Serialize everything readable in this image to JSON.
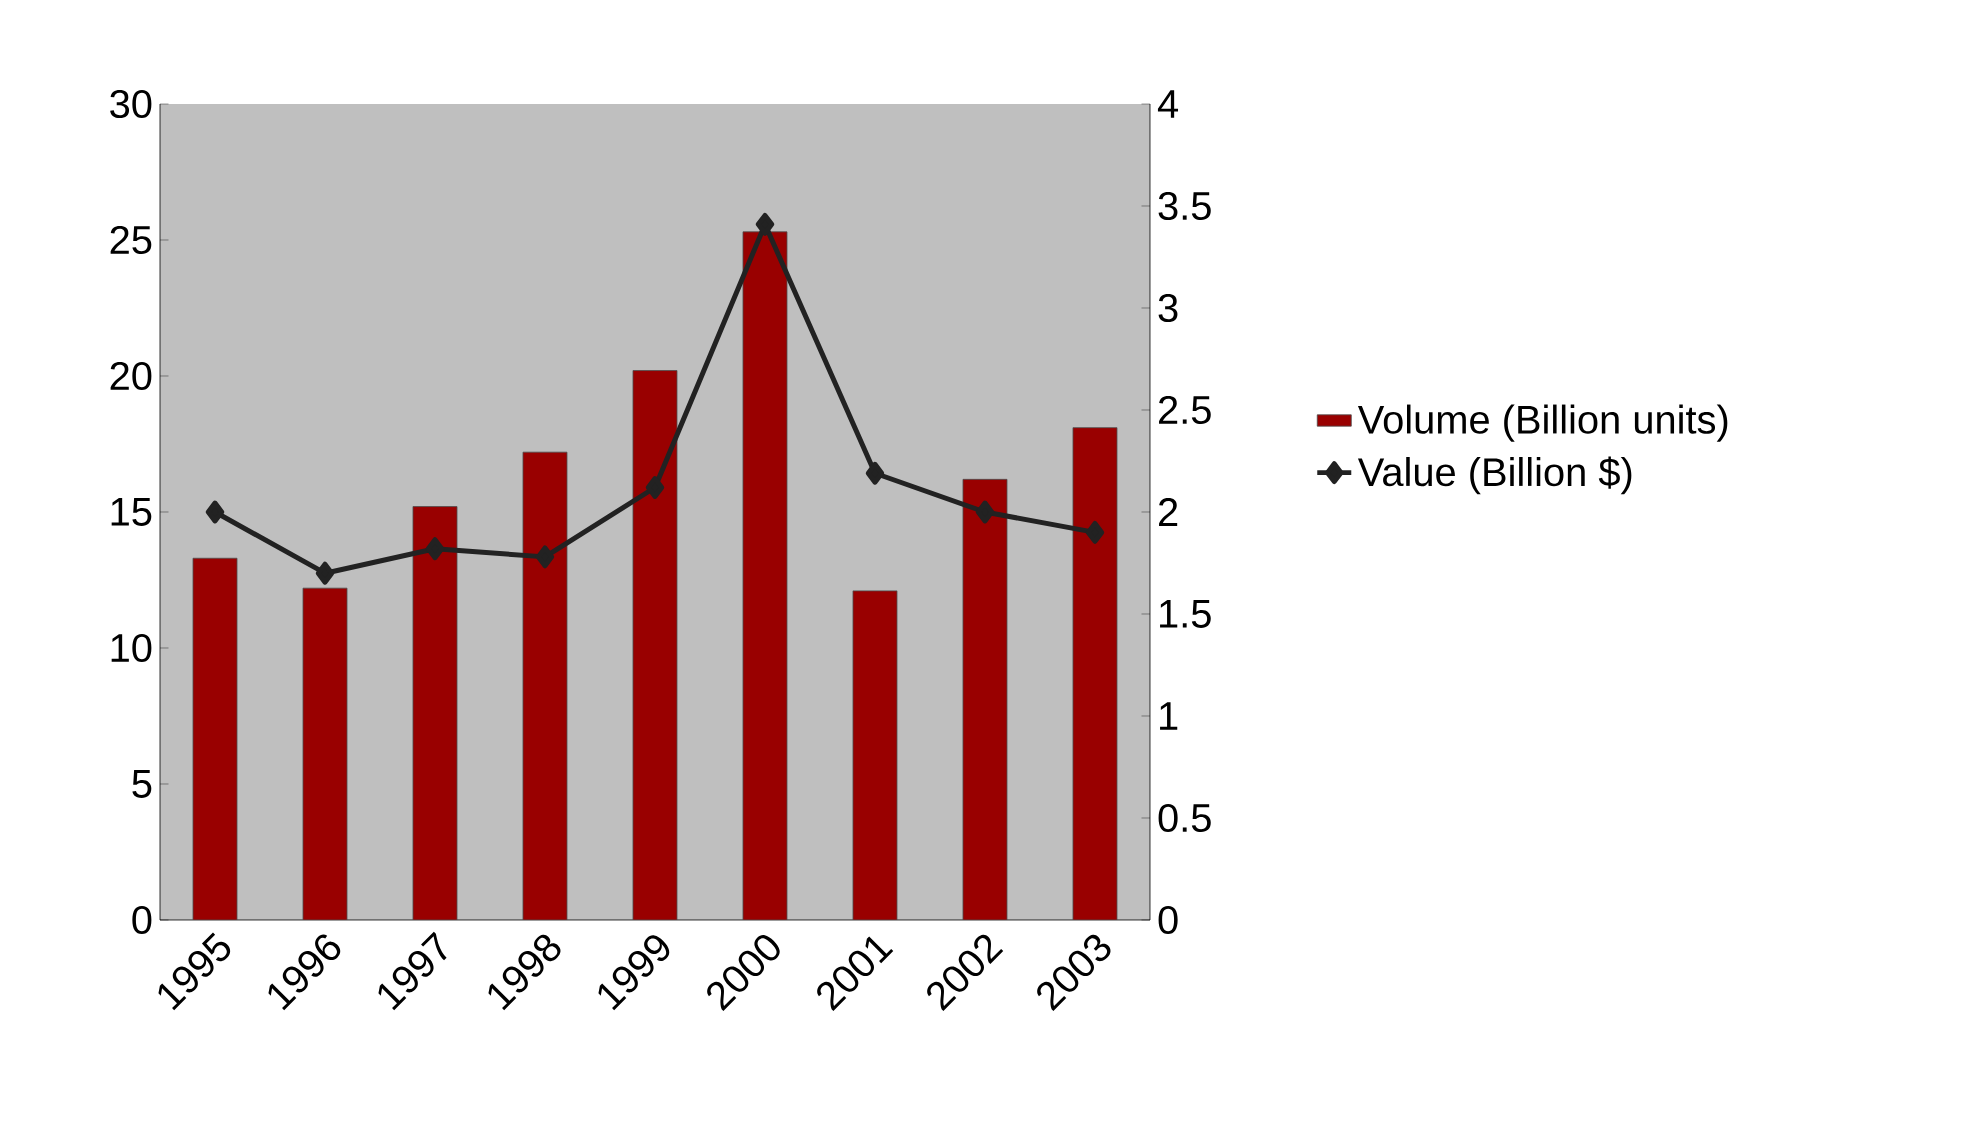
{
  "chart_data": {
    "type": "bar",
    "categories": [
      "1995",
      "1996",
      "1997",
      "1998",
      "1999",
      "2000",
      "2001",
      "2002",
      "2003"
    ],
    "series": [
      {
        "name": "Volume (Billion units)",
        "color": "#990000",
        "values": [
          13.3,
          12.2,
          15.2,
          17.2,
          20.2,
          25.3,
          12.1,
          16.2,
          18.1
        ]
      },
      {
        "name": "Value (Billion $)",
        "type": "line",
        "axis": "y2",
        "color": "#222222",
        "marker": "diamond",
        "values": [
          2.0,
          1.7,
          1.82,
          1.78,
          2.12,
          3.41,
          2.19,
          2.0,
          1.9
        ]
      }
    ],
    "ylim": [
      0,
      30
    ],
    "yticks": [
      0,
      5,
      10,
      15,
      20,
      25,
      30
    ],
    "y2lim": [
      0,
      4
    ],
    "y2ticks": [
      0,
      0.5,
      1,
      1.5,
      2,
      2.5,
      3,
      3.5,
      4
    ],
    "grid": false,
    "legend": "right"
  }
}
